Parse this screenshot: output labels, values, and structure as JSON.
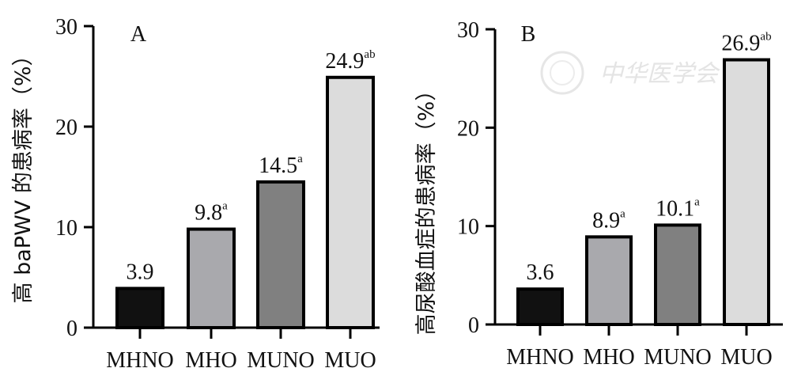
{
  "watermark": {
    "text": "中华医学会"
  },
  "chart_data": [
    {
      "type": "bar",
      "panel_label": "A",
      "ylabel": "高 baPWV 的患病率（%）",
      "ylim": [
        0,
        30
      ],
      "yticks": [
        0,
        10,
        20,
        30
      ],
      "categories": [
        "MHNO",
        "MHO",
        "MUNO",
        "MUO"
      ],
      "values": [
        3.9,
        9.8,
        14.5,
        24.9
      ],
      "value_labels": [
        "3.9",
        "9.8",
        "14.5",
        "24.9"
      ],
      "superscripts": [
        "",
        "a",
        "a",
        "ab"
      ],
      "colors": [
        "#111111",
        "#a9a9ad",
        "#808080",
        "#dcdcdc"
      ],
      "bar_border": "#000000",
      "grid": false,
      "legend": "none"
    },
    {
      "type": "bar",
      "panel_label": "B",
      "ylabel": "高尿酸血症的患病率（%）",
      "ylim": [
        0,
        30
      ],
      "yticks": [
        0,
        10,
        20,
        30
      ],
      "categories": [
        "MHNO",
        "MHO",
        "MUNO",
        "MUO"
      ],
      "values": [
        3.6,
        8.9,
        10.1,
        26.9
      ],
      "value_labels": [
        "3.6",
        "8.9",
        "10.1",
        "26.9"
      ],
      "superscripts": [
        "",
        "a",
        "a",
        "ab"
      ],
      "colors": [
        "#111111",
        "#a9a9ad",
        "#808080",
        "#dcdcdc"
      ],
      "bar_border": "#000000",
      "grid": false,
      "legend": "none"
    }
  ]
}
